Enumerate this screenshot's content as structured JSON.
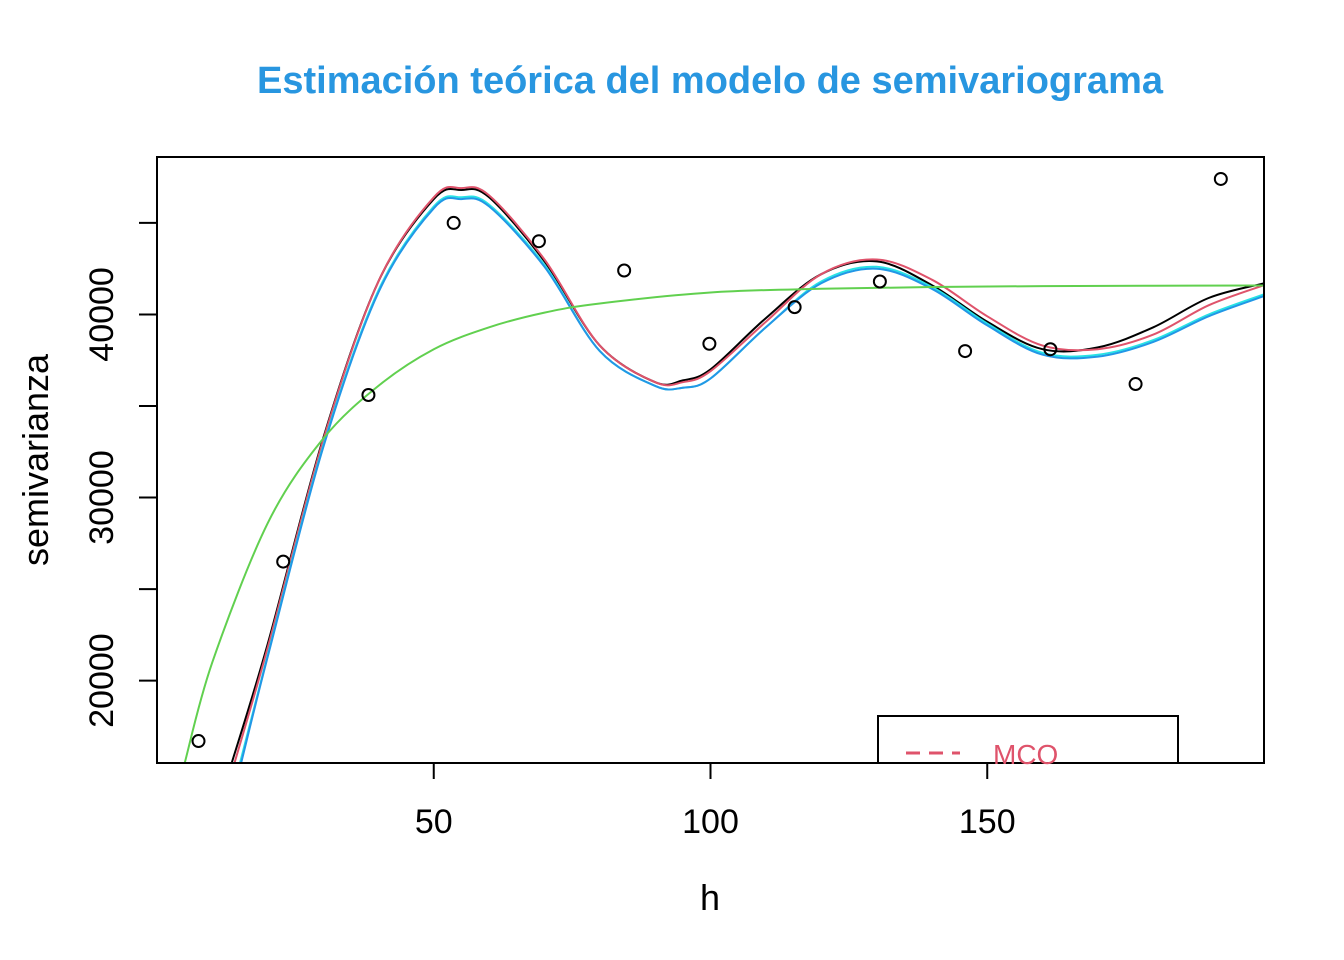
{
  "chart_data": {
    "type": "scatter",
    "title": "Estimación teórica del modelo de semivariograma",
    "title_color": "#2896E0",
    "xlabel": "h",
    "ylabel": "semivarianza",
    "xlim": [
      0,
      200
    ],
    "ylim": [
      15500,
      48600
    ],
    "x_ticks": [
      50,
      100,
      150
    ],
    "x_tick_labels": [
      "50",
      "100",
      "150"
    ],
    "y_ticks": [
      20000,
      25000,
      30000,
      35000,
      40000,
      45000
    ],
    "y_tick_labels": [
      "20000",
      "",
      "30000",
      "",
      "40000",
      ""
    ],
    "grid": false,
    "points": {
      "x": [
        7.5,
        22.8,
        38.2,
        53.6,
        69.0,
        84.4,
        99.8,
        115.2,
        130.6,
        146.0,
        161.4,
        176.8,
        192.2
      ],
      "y": [
        16700,
        26500,
        35600,
        45000,
        44000,
        42400,
        38400,
        40400,
        41800,
        38000,
        38100,
        36200,
        47400
      ]
    },
    "series": [
      {
        "color": "#000000",
        "x": [
          13.5,
          20,
          30,
          40,
          50,
          55,
          60,
          70,
          80,
          90,
          95,
          100,
          110,
          120,
          130,
          140,
          150,
          160,
          170,
          180,
          190,
          200
        ],
        "y": [
          15500,
          22000,
          33200,
          41800,
          46300,
          46800,
          46400,
          42900,
          38300,
          36300,
          36400,
          37000,
          39800,
          42200,
          42900,
          41600,
          39600,
          38100,
          38200,
          39300,
          40900,
          41700
        ]
      },
      {
        "color": "#DF536B",
        "x": [
          14.0,
          20,
          30,
          40,
          50,
          55,
          60,
          70,
          80,
          90,
          95,
          100,
          110,
          120,
          130,
          140,
          150,
          160,
          170,
          180,
          190,
          200
        ],
        "y": [
          15500,
          21800,
          33100,
          41800,
          46400,
          46900,
          46500,
          43000,
          38300,
          36300,
          36300,
          36900,
          39600,
          42200,
          43000,
          41900,
          39900,
          38300,
          38100,
          38900,
          40500,
          41600
        ]
      },
      {
        "color": "#28E2E5",
        "x": [
          15.0,
          20,
          30,
          40,
          50,
          55,
          60,
          70,
          80,
          90,
          95,
          100,
          110,
          120,
          130,
          140,
          150,
          160,
          170,
          180,
          190,
          200
        ],
        "y": [
          15500,
          21400,
          32800,
          41300,
          45900,
          46400,
          46000,
          42700,
          38000,
          36100,
          36000,
          36500,
          39300,
          41800,
          42600,
          41500,
          39500,
          37900,
          37800,
          38600,
          40000,
          41100
        ]
      },
      {
        "color": "#2297E6",
        "x": [
          15.2,
          20,
          30,
          40,
          50,
          55,
          60,
          70,
          80,
          90,
          95,
          100,
          110,
          120,
          130,
          140,
          150,
          160,
          170,
          180,
          190,
          200
        ],
        "y": [
          15500,
          21300,
          32700,
          41200,
          45800,
          46300,
          45900,
          42600,
          38000,
          36100,
          36000,
          36500,
          39300,
          41700,
          42500,
          41400,
          39400,
          37800,
          37700,
          38500,
          39900,
          41000
        ]
      },
      {
        "color": "#61D04F",
        "x": [
          5,
          10,
          20,
          30,
          40,
          50,
          60,
          70,
          80,
          100,
          120,
          140,
          160,
          180,
          200
        ],
        "y": [
          15500,
          21000,
          28600,
          33200,
          36100,
          38100,
          39300,
          40100,
          40600,
          41200,
          41400,
          41500,
          41550,
          41570,
          41580
        ]
      }
    ],
    "legend": {
      "placement": "bottom-right",
      "entries": [
        {
          "label": "MCO",
          "color": "#DF536B",
          "line": "dashed"
        }
      ]
    }
  }
}
